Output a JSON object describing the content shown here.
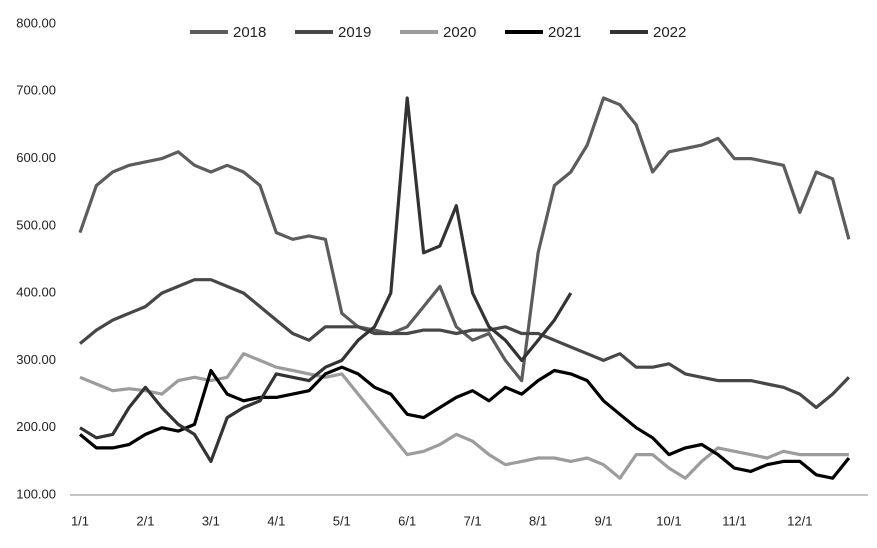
{
  "chart_data": {
    "type": "line",
    "categories": [
      "1/1",
      null,
      null,
      null,
      "2/1",
      null,
      null,
      null,
      "3/1",
      null,
      null,
      null,
      "4/1",
      null,
      null,
      null,
      "5/1",
      null,
      null,
      null,
      "6/1",
      null,
      null,
      null,
      "7/1",
      null,
      null,
      null,
      "8/1",
      null,
      null,
      null,
      "9/1",
      null,
      null,
      null,
      "10/1",
      null,
      null,
      null,
      "11/1",
      null,
      null,
      null,
      "12/1",
      null,
      null,
      null
    ],
    "series": [
      {
        "name": "2018",
        "color": "#5c5c5c",
        "values": [
          490,
          560,
          580,
          590,
          595,
          600,
          610,
          590,
          580,
          590,
          580,
          560,
          490,
          480,
          485,
          480,
          370,
          350,
          345,
          340,
          350,
          380,
          410,
          350,
          330,
          340,
          300,
          270,
          460,
          560,
          580,
          620,
          690,
          680,
          650,
          580,
          610,
          615,
          620,
          630,
          600,
          600,
          595,
          590,
          520,
          580,
          570,
          480
        ]
      },
      {
        "name": "2019",
        "color": "#474747",
        "values": [
          325,
          345,
          360,
          370,
          380,
          400,
          410,
          420,
          420,
          410,
          400,
          380,
          360,
          340,
          330,
          350,
          350,
          350,
          340,
          340,
          340,
          345,
          345,
          340,
          345,
          345,
          350,
          340,
          340,
          330,
          320,
          310,
          300,
          310,
          290,
          290,
          295,
          280,
          275,
          270,
          270,
          270,
          265,
          260,
          250,
          230,
          250,
          275
        ]
      },
      {
        "name": "2020",
        "color": "#9c9c9c",
        "values": [
          275,
          265,
          255,
          258,
          255,
          250,
          270,
          275,
          270,
          275,
          310,
          300,
          290,
          285,
          280,
          275,
          280,
          250,
          220,
          190,
          160,
          165,
          175,
          190,
          180,
          160,
          145,
          150,
          155,
          155,
          150,
          155,
          145,
          125,
          160,
          160,
          140,
          125,
          150,
          170,
          165,
          160,
          155,
          165,
          160,
          160,
          160,
          160
        ]
      },
      {
        "name": "2021",
        "color": "#000000",
        "values": [
          190,
          170,
          170,
          175,
          190,
          200,
          195,
          205,
          285,
          250,
          240,
          245,
          245,
          250,
          255,
          280,
          290,
          280,
          260,
          250,
          220,
          215,
          230,
          245,
          255,
          240,
          260,
          250,
          270,
          285,
          280,
          270,
          240,
          220,
          200,
          185,
          160,
          170,
          175,
          160,
          140,
          135,
          145,
          150,
          150,
          130,
          125,
          155
        ]
      },
      {
        "name": "2022",
        "color": "#333333",
        "values": [
          200,
          185,
          190,
          230,
          260,
          230,
          205,
          190,
          150,
          215,
          230,
          240,
          280,
          275,
          270,
          290,
          300,
          330,
          350,
          400,
          690,
          460,
          470,
          530,
          400,
          350,
          330,
          300,
          330,
          360,
          400,
          null,
          null,
          null,
          null,
          null,
          null,
          null,
          null,
          null,
          null,
          null,
          null,
          null,
          null,
          null,
          null,
          null
        ]
      }
    ],
    "ylim": [
      100,
      800
    ],
    "yticks": [
      {
        "value": 100,
        "label": "100.00"
      },
      {
        "value": 200,
        "label": "200.00"
      },
      {
        "value": 300,
        "label": "300.00"
      },
      {
        "value": 400,
        "label": "400.00"
      },
      {
        "value": 500,
        "label": "500.00"
      },
      {
        "value": 600,
        "label": "600.00"
      },
      {
        "value": 700,
        "label": "700.00"
      },
      {
        "value": 800,
        "label": "800.00"
      }
    ],
    "grid": false,
    "legend": "top"
  }
}
